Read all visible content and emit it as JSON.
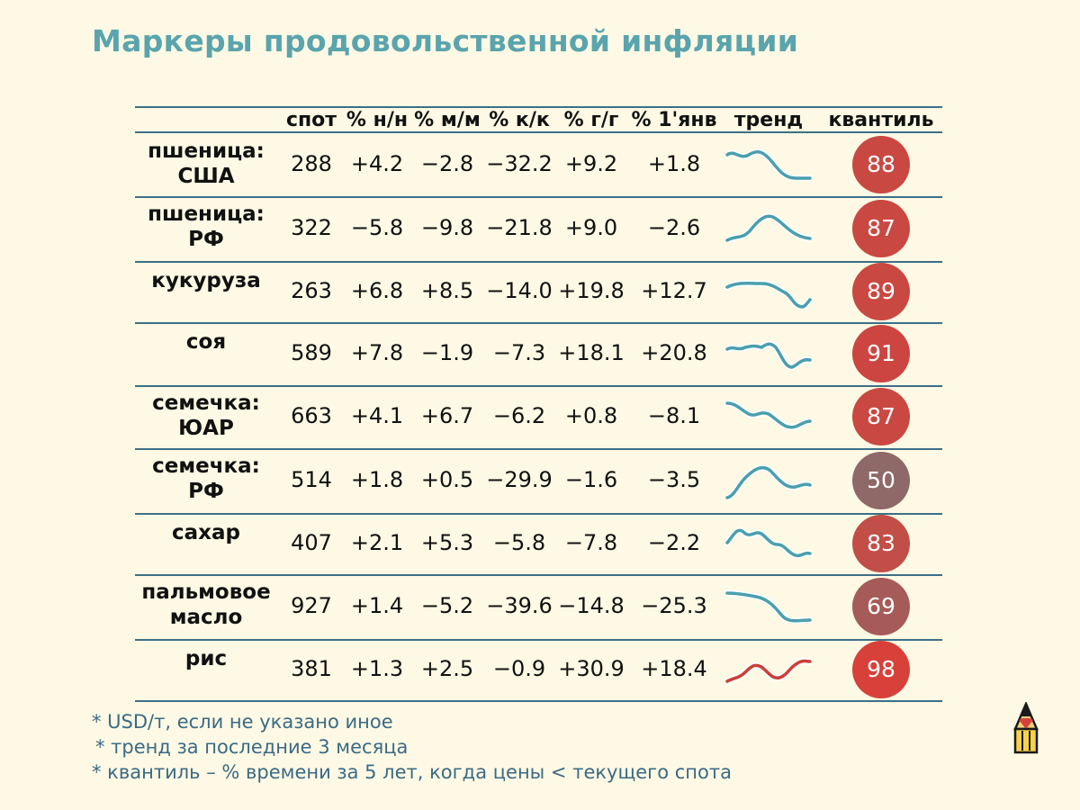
{
  "title": "Маркеры продовольственной инфляции",
  "headers": {
    "spot": "спот",
    "wow": "% н/н",
    "mom": "% м/м",
    "qoq": "% к/к",
    "yoy": "% г/г",
    "ytd": "% 1'янв",
    "trend": "тренд",
    "quantile": "квантиль"
  },
  "rows": [
    {
      "name1": "пшеница:",
      "name2": "США",
      "spot": "288",
      "wow": "+4.2",
      "mom": "−2.8",
      "qoq": "−32.2",
      "yoy": "+9.2",
      "ytd": "+1.8",
      "quantile": "88",
      "quantile_color": "#c94842",
      "trend_color": "#4a9fae"
    },
    {
      "name1": "пшеница:",
      "name2": "РФ",
      "spot": "322",
      "wow": "−5.8",
      "mom": "−9.8",
      "qoq": "−21.8",
      "yoy": "+9.0",
      "ytd": "−2.6",
      "quantile": "87",
      "quantile_color": "#c94842",
      "trend_color": "#4a9fae"
    },
    {
      "name1": "кукуруза",
      "name2": "",
      "spot": "263",
      "wow": "+6.8",
      "mom": "+8.5",
      "qoq": "−14.0",
      "yoy": "+19.8",
      "ytd": "+12.7",
      "quantile": "89",
      "quantile_color": "#c94842",
      "trend_color": "#4a9fae"
    },
    {
      "name1": "соя",
      "name2": "",
      "spot": "589",
      "wow": "+7.8",
      "mom": "−1.9",
      "qoq": "−7.3",
      "yoy": "+18.1",
      "ytd": "+20.8",
      "quantile": "91",
      "quantile_color": "#cc4540",
      "trend_color": "#4a9fae"
    },
    {
      "name1": "семечка:",
      "name2": "ЮАР",
      "spot": "663",
      "wow": "+4.1",
      "mom": "+6.7",
      "qoq": "−6.2",
      "yoy": "+0.8",
      "ytd": "−8.1",
      "quantile": "87",
      "quantile_color": "#c94842",
      "trend_color": "#4a9fae"
    },
    {
      "name1": "семечка:",
      "name2": "РФ",
      "spot": "514",
      "wow": "+1.8",
      "mom": "+0.5",
      "qoq": "−29.9",
      "yoy": "−1.6",
      "ytd": "−3.5",
      "quantile": "50",
      "quantile_color": "#8f6868",
      "trend_color": "#4a9fae"
    },
    {
      "name1": "сахар",
      "name2": "",
      "spot": "407",
      "wow": "+2.1",
      "mom": "+5.3",
      "qoq": "−5.8",
      "yoy": "−7.8",
      "ytd": "−2.2",
      "quantile": "83",
      "quantile_color": "#c24e48",
      "trend_color": "#4a9fae"
    },
    {
      "name1": "пальмовое",
      "name2": "масло",
      "spot": "927",
      "wow": "+1.4",
      "mom": "−5.2",
      "qoq": "−39.6",
      "yoy": "−14.8",
      "ytd": "−25.3",
      "quantile": "69",
      "quantile_color": "#a65b58",
      "trend_color": "#4a9fae"
    },
    {
      "name1": "рис",
      "name2": "",
      "spot": "381",
      "wow": "+1.3",
      "mom": "+2.5",
      "qoq": "−0.9",
      "yoy": "+30.9",
      "ytd": "+18.4",
      "quantile": "98",
      "quantile_color": "#d8403a",
      "trend_color": "#c9403a"
    }
  ],
  "notes": [
    "* USD/т, если не указано иное",
    "* тренд за последние 3 месяца",
    "* квантиль – % времени за 5 лет, когда цены < текущего спота"
  ],
  "logo_icon": "pencil-logo-icon",
  "colors": {
    "title": "#5aa4ad",
    "lines": "#3d6f86",
    "notes": "#3b6a85",
    "background": "#fdf9e4"
  }
}
